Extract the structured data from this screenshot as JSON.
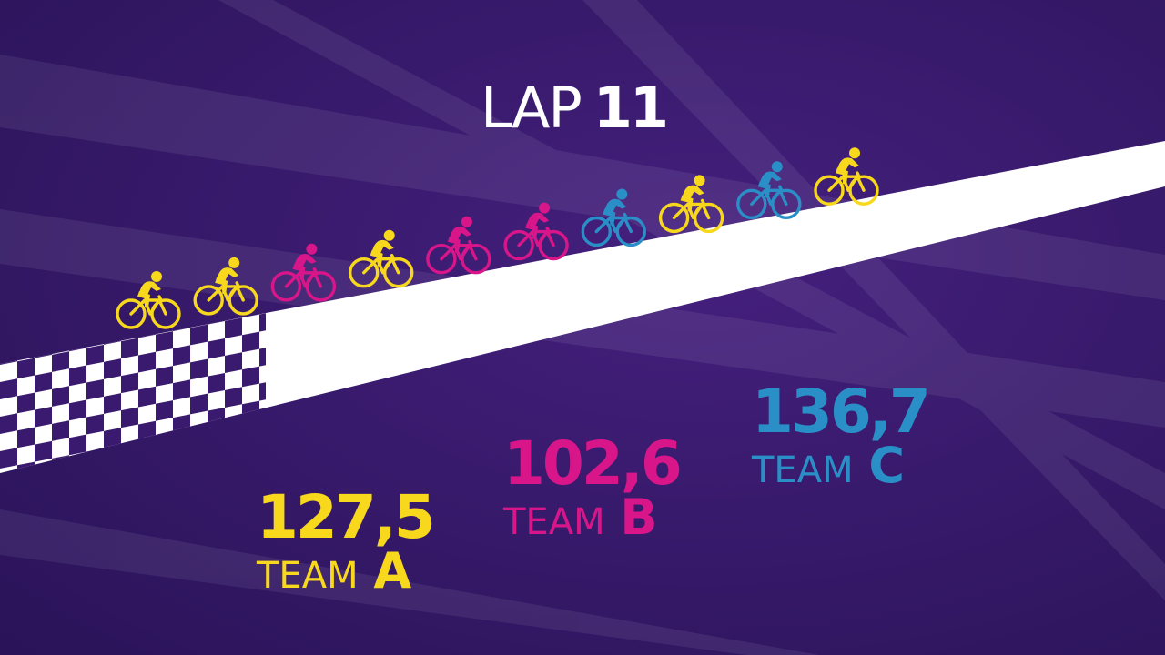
{
  "lap": {
    "word": "LAP",
    "number": "11"
  },
  "colors": {
    "team_a": "#f7d81c",
    "team_b": "#d8168a",
    "team_c": "#2b8fc7",
    "background": "#3a1a6e",
    "track": "#ffffff"
  },
  "riders": [
    "A",
    "A",
    "B",
    "A",
    "B",
    "B",
    "C",
    "A",
    "C",
    "A"
  ],
  "teams": [
    {
      "id": "a",
      "score": "127,5",
      "label_word": "TEAM",
      "label_letter": "A"
    },
    {
      "id": "b",
      "score": "102,6",
      "label_word": "TEAM",
      "label_letter": "B"
    },
    {
      "id": "c",
      "score": "136,7",
      "label_word": "TEAM",
      "label_letter": "C"
    }
  ]
}
